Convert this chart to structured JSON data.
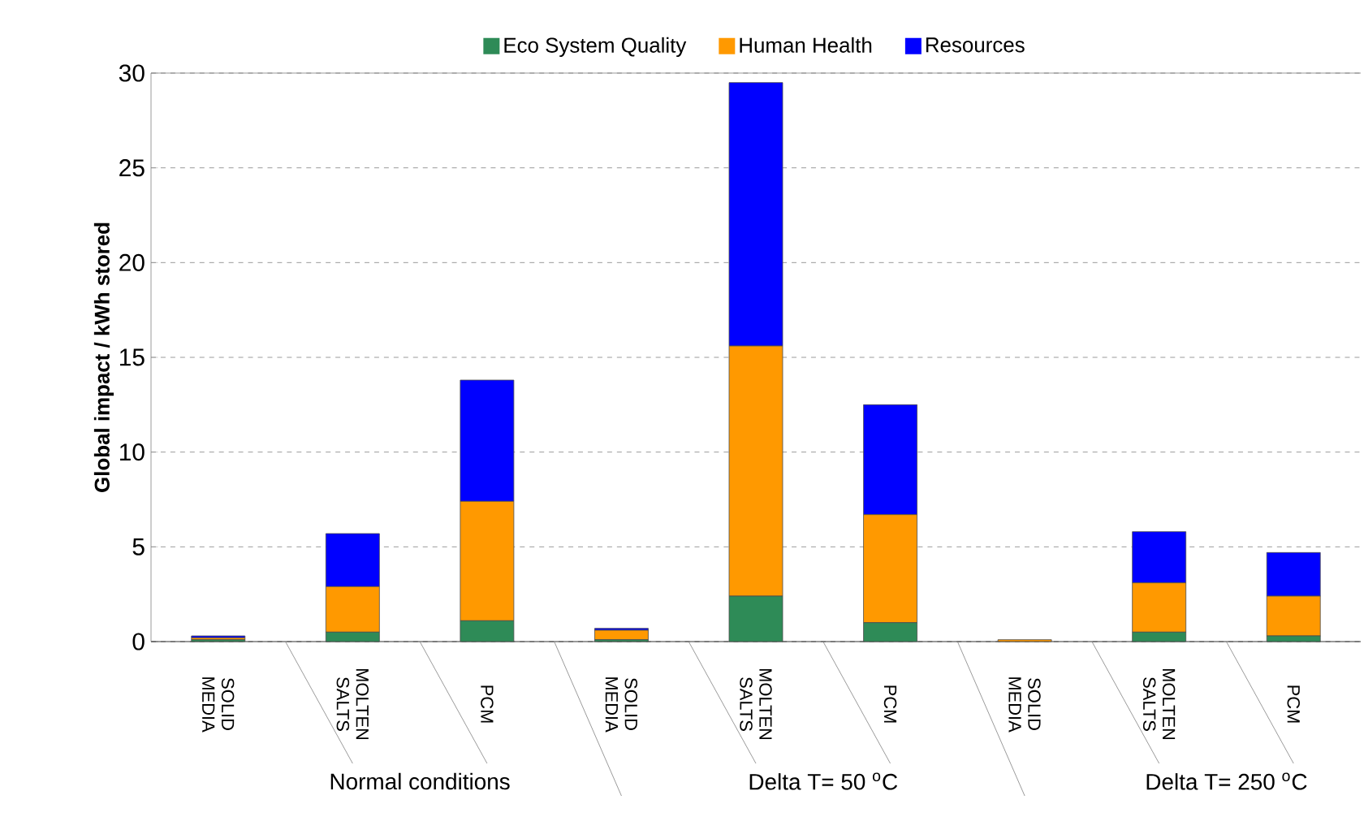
{
  "chart_data": {
    "type": "bar",
    "stacked": true,
    "ylabel": "Global impact / kWh stored",
    "categories": [
      "SOLID MEDIA",
      "MOLTEN SALTS",
      "PCM",
      "SOLID MEDIA",
      "MOLTEN SALTS",
      "PCM",
      "SOLID MEDIA",
      "MOLTEN SALTS",
      "PCM"
    ],
    "series": [
      {
        "name": "Eco System Quality",
        "color": "#2e8b57",
        "values": [
          0.1,
          0.5,
          1.1,
          0.1,
          2.4,
          1.0,
          0,
          0.5,
          0.3
        ]
      },
      {
        "name": "Human Health",
        "color": "#ff9900",
        "values": [
          0.1,
          2.4,
          6.3,
          0.5,
          13.2,
          5.7,
          0.1,
          2.6,
          2.1
        ]
      },
      {
        "name": "Resources",
        "color": "#0000ff",
        "values": [
          0.1,
          2.8,
          6.4,
          0.1,
          13.9,
          5.8,
          0,
          2.7,
          2.3
        ]
      }
    ],
    "annotations": [
      "Normal conditions",
      "Delta T= 50 $^{o}$C",
      "Delta T= 250 $^{o}$C"
    ],
    "ylim": [
      0,
      30
    ],
    "yticks": [
      0,
      5,
      10,
      15,
      20,
      25,
      30
    ],
    "grid": "y",
    "legend": "top"
  }
}
